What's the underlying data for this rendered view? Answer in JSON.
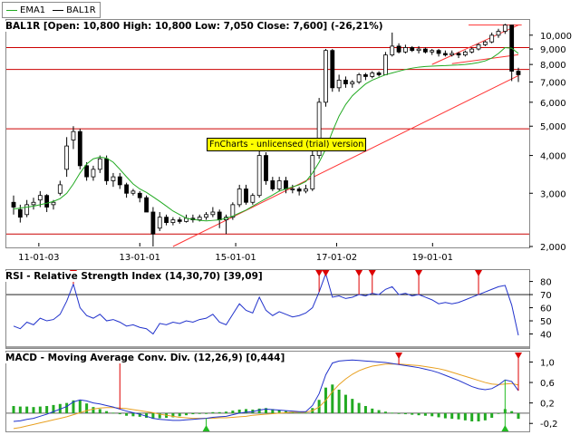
{
  "legend": {
    "ema_label": "EMA1",
    "bal_label": "BAL1R",
    "ema_color": "#22aa22",
    "bal_color": "#000000"
  },
  "watermark": "FnCharts - unlicensed (trial) version",
  "colors": {
    "frame": "#888888",
    "level_line": "#cc0000",
    "trend_line": "#ff3333",
    "rsi_line": "#2233cc",
    "macd_line": "#2233cc",
    "signal_line": "#e8a020",
    "hist_color": "#22aa22",
    "marker_down": "#dd0000",
    "marker_up": "#22bb22"
  },
  "chart_data": [
    {
      "type": "candlestick",
      "title": "BAL1R [Open: 10,800  High: 10,800  Low: 7,050  Close: 7,600] (-26,21%)",
      "scale": "log",
      "ylim": [
        2.0,
        11.0
      ],
      "y_ticks": [
        "2,000",
        "3,000",
        "4,000",
        "5,000",
        "6,000",
        "7,000",
        "8,000",
        "9,000",
        "10,000"
      ],
      "x_ticks": [
        "11-01-03",
        "13-01-01",
        "15-01-01",
        "17-01-02",
        "19-01-01"
      ],
      "horizontal_levels": [
        2.2,
        4.9,
        7.7,
        9.1
      ],
      "series": [
        {
          "name": "EMA1",
          "type": "line",
          "values": [
            2.66,
            2.68,
            2.7,
            2.72,
            2.75,
            2.78,
            2.82,
            2.88,
            3.0,
            3.22,
            3.5,
            3.75,
            3.9,
            3.95,
            3.92,
            3.8,
            3.6,
            3.4,
            3.22,
            3.1,
            3.02,
            2.92,
            2.82,
            2.72,
            2.62,
            2.55,
            2.48,
            2.46,
            2.44,
            2.43,
            2.44,
            2.45,
            2.48,
            2.52,
            2.58,
            2.64,
            2.72,
            2.8,
            2.88,
            2.96,
            3.05,
            3.1,
            3.15,
            3.2,
            3.28,
            3.5,
            3.8,
            4.2,
            4.8,
            5.4,
            5.9,
            6.3,
            6.6,
            6.9,
            7.1,
            7.25,
            7.4,
            7.5,
            7.6,
            7.7,
            7.78,
            7.84,
            7.88,
            7.9,
            7.92,
            7.93,
            7.95,
            7.97,
            8.0,
            8.05,
            8.12,
            8.22,
            8.4,
            8.7,
            9.1,
            9.05,
            8.7
          ]
        },
        {
          "name": "BAL1R",
          "type": "ohlc",
          "ohlc": [
            [
              2.8,
              2.95,
              2.55,
              2.7
            ],
            [
              2.65,
              2.75,
              2.4,
              2.5
            ],
            [
              2.55,
              2.85,
              2.5,
              2.75
            ],
            [
              2.75,
              2.9,
              2.65,
              2.8
            ],
            [
              2.85,
              3.05,
              2.7,
              2.95
            ],
            [
              2.95,
              2.98,
              2.6,
              2.7
            ],
            [
              2.75,
              2.85,
              2.65,
              2.8
            ],
            [
              3.0,
              3.3,
              2.95,
              3.2
            ],
            [
              3.6,
              4.6,
              3.4,
              4.3
            ],
            [
              4.5,
              5.0,
              4.2,
              4.8
            ],
            [
              4.8,
              4.9,
              3.6,
              3.7
            ],
            [
              3.7,
              3.8,
              3.3,
              3.4
            ],
            [
              3.4,
              3.7,
              3.3,
              3.6
            ],
            [
              3.6,
              4.0,
              3.5,
              3.9
            ],
            [
              3.9,
              4.0,
              3.2,
              3.3
            ],
            [
              3.3,
              3.5,
              3.15,
              3.4
            ],
            [
              3.4,
              3.5,
              3.1,
              3.2
            ],
            [
              3.2,
              3.25,
              2.9,
              3.0
            ],
            [
              3.0,
              3.1,
              2.95,
              3.05
            ],
            [
              3.0,
              3.05,
              2.8,
              2.9
            ],
            [
              2.9,
              2.95,
              2.6,
              2.6
            ],
            [
              2.6,
              2.7,
              2.0,
              2.2
            ],
            [
              2.3,
              2.6,
              2.25,
              2.5
            ],
            [
              2.5,
              2.55,
              2.35,
              2.4
            ],
            [
              2.4,
              2.5,
              2.35,
              2.45
            ],
            [
              2.45,
              2.5,
              2.38,
              2.42
            ],
            [
              2.42,
              2.55,
              2.4,
              2.48
            ],
            [
              2.48,
              2.55,
              2.4,
              2.45
            ],
            [
              2.45,
              2.55,
              2.42,
              2.5
            ],
            [
              2.5,
              2.6,
              2.45,
              2.55
            ],
            [
              2.55,
              2.7,
              2.5,
              2.6
            ],
            [
              2.6,
              2.65,
              2.3,
              2.45
            ],
            [
              2.45,
              2.55,
              2.2,
              2.5
            ],
            [
              2.5,
              2.8,
              2.45,
              2.75
            ],
            [
              2.75,
              3.2,
              2.7,
              3.1
            ],
            [
              3.1,
              3.2,
              2.75,
              2.8
            ],
            [
              2.8,
              3.0,
              2.75,
              2.95
            ],
            [
              2.95,
              4.3,
              2.9,
              4.0
            ],
            [
              4.0,
              4.1,
              3.2,
              3.3
            ],
            [
              3.3,
              3.4,
              3.05,
              3.1
            ],
            [
              3.1,
              3.4,
              3.05,
              3.3
            ],
            [
              3.3,
              3.4,
              3.0,
              3.1
            ],
            [
              3.1,
              3.2,
              3.0,
              3.1
            ],
            [
              3.1,
              3.15,
              2.95,
              3.05
            ],
            [
              3.05,
              3.2,
              3.0,
              3.1
            ],
            [
              3.1,
              4.2,
              3.05,
              4.0
            ],
            [
              4.0,
              6.2,
              3.9,
              6.0
            ],
            [
              6.0,
              9.0,
              5.8,
              8.9
            ],
            [
              8.9,
              9.0,
              6.5,
              6.7
            ],
            [
              6.7,
              7.4,
              6.5,
              7.1
            ],
            [
              7.1,
              7.3,
              6.7,
              6.9
            ],
            [
              6.9,
              7.1,
              6.7,
              7.0
            ],
            [
              7.0,
              7.5,
              6.9,
              7.4
            ],
            [
              7.4,
              7.5,
              7.1,
              7.3
            ],
            [
              7.3,
              7.6,
              7.2,
              7.5
            ],
            [
              7.5,
              7.6,
              7.3,
              7.4
            ],
            [
              7.4,
              8.8,
              7.4,
              8.6
            ],
            [
              8.6,
              10.2,
              8.5,
              9.2
            ],
            [
              9.2,
              9.4,
              8.7,
              8.8
            ],
            [
              8.8,
              9.3,
              8.7,
              9.1
            ],
            [
              9.1,
              9.2,
              8.8,
              8.9
            ],
            [
              8.9,
              9.2,
              8.7,
              9.0
            ],
            [
              9.0,
              9.1,
              8.7,
              8.8
            ],
            [
              8.8,
              9.0,
              8.6,
              8.9
            ],
            [
              8.9,
              9.0,
              8.5,
              8.7
            ],
            [
              8.7,
              8.9,
              8.5,
              8.6
            ],
            [
              8.6,
              8.9,
              8.5,
              8.7
            ],
            [
              8.7,
              8.8,
              8.4,
              8.6
            ],
            [
              8.6,
              8.9,
              8.5,
              8.8
            ],
            [
              8.8,
              9.1,
              8.7,
              9.0
            ],
            [
              9.0,
              9.4,
              8.9,
              9.3
            ],
            [
              9.3,
              9.6,
              9.2,
              9.5
            ],
            [
              9.5,
              10.2,
              9.4,
              10.0
            ],
            [
              10.0,
              10.5,
              9.8,
              10.3
            ],
            [
              10.3,
              10.9,
              10.1,
              10.8
            ],
            [
              10.8,
              10.8,
              7.05,
              7.6
            ],
            [
              7.6,
              7.8,
              7.0,
              7.4
            ]
          ]
        }
      ]
    },
    {
      "type": "line",
      "title": "RSI - Relative Strength Index (14,30,70) [39,09]",
      "ylim": [
        30,
        88
      ],
      "y_ticks": [
        "40",
        "50",
        "60",
        "70",
        "80"
      ],
      "levels": [
        30,
        70
      ],
      "series": [
        {
          "name": "RSI",
          "values": [
            46,
            44,
            49,
            47,
            52,
            50,
            51,
            55,
            65,
            78,
            60,
            54,
            52,
            55,
            50,
            51,
            49,
            46,
            47,
            45,
            44,
            40,
            48,
            47,
            49,
            48,
            50,
            49,
            51,
            52,
            55,
            49,
            47,
            55,
            63,
            58,
            56,
            68,
            58,
            54,
            57,
            55,
            53,
            54,
            56,
            60,
            72,
            86,
            68,
            69,
            67,
            68,
            70,
            69,
            71,
            70,
            74,
            76,
            70,
            71,
            69,
            70,
            68,
            66,
            63,
            64,
            63,
            64,
            66,
            68,
            70,
            72,
            74,
            76,
            77,
            62,
            39
          ]
        }
      ]
    },
    {
      "type": "bar",
      "title": "MACD - Moving Average Conv. Div. (12,26,9) [0,444]",
      "ylim": [
        -0.32,
        1.15
      ],
      "y_ticks": [
        "-0,2",
        "0,2",
        "0,6",
        "1,0"
      ],
      "series": [
        {
          "name": "MACD",
          "type": "line",
          "values": [
            -0.16,
            -0.15,
            -0.12,
            -0.1,
            -0.06,
            -0.02,
            0.03,
            0.08,
            0.13,
            0.22,
            0.26,
            0.24,
            0.2,
            0.18,
            0.15,
            0.12,
            0.08,
            0.04,
            0.01,
            -0.02,
            -0.06,
            -0.1,
            -0.12,
            -0.13,
            -0.14,
            -0.14,
            -0.13,
            -0.12,
            -0.11,
            -0.1,
            -0.08,
            -0.07,
            -0.06,
            -0.03,
            0.0,
            0.02,
            0.03,
            0.06,
            0.08,
            0.07,
            0.06,
            0.05,
            0.04,
            0.03,
            0.03,
            0.15,
            0.38,
            0.75,
            0.98,
            1.02,
            1.03,
            1.04,
            1.03,
            1.02,
            1.01,
            1.0,
            0.99,
            0.97,
            0.95,
            0.93,
            0.91,
            0.89,
            0.86,
            0.83,
            0.79,
            0.74,
            0.69,
            0.64,
            0.58,
            0.52,
            0.48,
            0.46,
            0.48,
            0.55,
            0.65,
            0.62,
            0.44
          ]
        },
        {
          "name": "Signal",
          "type": "line",
          "values": [
            -0.3,
            -0.28,
            -0.25,
            -0.22,
            -0.19,
            -0.16,
            -0.13,
            -0.1,
            -0.07,
            -0.03,
            0.01,
            0.05,
            0.08,
            0.1,
            0.11,
            0.11,
            0.1,
            0.09,
            0.07,
            0.05,
            0.03,
            0.01,
            -0.02,
            -0.04,
            -0.06,
            -0.08,
            -0.09,
            -0.1,
            -0.1,
            -0.1,
            -0.1,
            -0.09,
            -0.09,
            -0.08,
            -0.07,
            -0.06,
            -0.04,
            -0.03,
            -0.02,
            -0.01,
            0.0,
            0.01,
            0.02,
            0.02,
            0.02,
            0.05,
            0.12,
            0.25,
            0.42,
            0.56,
            0.67,
            0.76,
            0.83,
            0.88,
            0.92,
            0.94,
            0.96,
            0.96,
            0.96,
            0.95,
            0.94,
            0.93,
            0.91,
            0.89,
            0.87,
            0.84,
            0.8,
            0.76,
            0.72,
            0.68,
            0.64,
            0.6,
            0.57,
            0.56,
            0.57,
            0.58,
            0.55
          ]
        }
      ]
    }
  ]
}
